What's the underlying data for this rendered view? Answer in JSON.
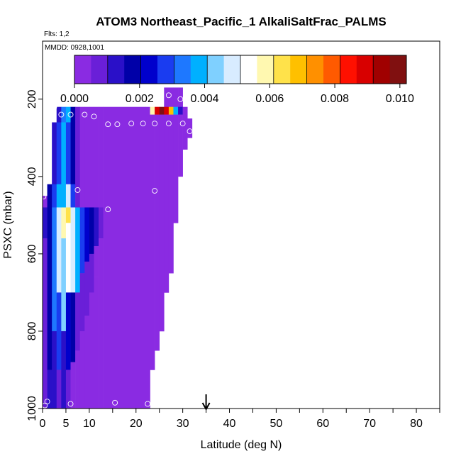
{
  "chart_data": {
    "type": "heatmap",
    "title": "ATOM3 Northeast_Pacific_1 AlkaliSaltFrac_PALMS",
    "flights_label": "Flts: 1,2",
    "date_label": "MMDD: 0928,1001",
    "xlabel": "Latitude (deg N)",
    "ylabel": "PSXC (mbar)",
    "xlim": [
      0,
      85
    ],
    "ylim": [
      1000,
      50
    ],
    "y_reversed": true,
    "x_ticks": [
      0,
      5,
      10,
      20,
      30,
      40,
      50,
      60,
      70,
      80
    ],
    "x_minor_ticks": [
      15,
      25,
      35,
      45,
      55,
      65,
      75,
      85
    ],
    "y_ticks": [
      200,
      400,
      600,
      800,
      1000
    ],
    "colorbar": {
      "min": 0.0,
      "max": 0.0102,
      "ticks": [
        "0.000",
        "0.002",
        "0.004",
        "0.006",
        "0.008",
        "0.010"
      ],
      "tick_values": [
        0,
        0.002,
        0.004,
        0.006,
        0.008,
        0.01
      ],
      "colors": [
        "#8a2be2",
        "#6a1fd8",
        "#2a10c8",
        "#0000a8",
        "#0000cc",
        "#1a3cf0",
        "#1e78ff",
        "#00b0ff",
        "#7fd0ff",
        "#d8ecff",
        "#ffffff",
        "#fff8b0",
        "#ffe24a",
        "#ffc000",
        "#ff9000",
        "#ff5a00",
        "#ff1000",
        "#d80000",
        "#a00000",
        "#801010"
      ]
    },
    "columns": [
      {
        "lat_range": [
          0,
          1
        ],
        "cells": [
          [
            450,
            480,
            0.0001
          ],
          [
            480,
            560,
            0.0015
          ],
          [
            560,
            1000,
            0.001
          ]
        ]
      },
      {
        "lat_range": [
          1,
          2
        ],
        "cells": [
          [
            420,
            480,
            0.0016
          ],
          [
            480,
            900,
            0.0018
          ],
          [
            900,
            1000,
            0.0014
          ]
        ]
      },
      {
        "lat_range": [
          2,
          3
        ],
        "cells": [
          [
            260,
            420,
            0.0014
          ],
          [
            420,
            480,
            0.003
          ],
          [
            480,
            800,
            0.0032
          ],
          [
            800,
            1000,
            0.0015
          ]
        ]
      },
      {
        "lat_range": [
          3,
          4
        ],
        "cells": [
          [
            220,
            260,
            0.0012
          ],
          [
            260,
            420,
            0.0028
          ],
          [
            420,
            480,
            0.004
          ],
          [
            480,
            700,
            0.0046
          ],
          [
            700,
            900,
            0.003
          ],
          [
            900,
            1000,
            0.001
          ]
        ]
      },
      {
        "lat_range": [
          4,
          5
        ],
        "cells": [
          [
            220,
            260,
            0.0032
          ],
          [
            260,
            420,
            0.004
          ],
          [
            420,
            480,
            0.0036
          ],
          [
            480,
            560,
            0.0058
          ],
          [
            560,
            800,
            0.0044
          ],
          [
            800,
            1000,
            0.0012
          ]
        ]
      },
      {
        "lat_range": [
          5,
          6
        ],
        "cells": [
          [
            220,
            260,
            0.004
          ],
          [
            260,
            420,
            0.003
          ],
          [
            420,
            480,
            0.0048
          ],
          [
            480,
            520,
            0.0062
          ],
          [
            520,
            700,
            0.0052
          ],
          [
            700,
            900,
            0.0024
          ],
          [
            900,
            1000,
            0.0008
          ]
        ]
      },
      {
        "lat_range": [
          6,
          7
        ],
        "cells": [
          [
            220,
            260,
            0.0016
          ],
          [
            260,
            420,
            0.002
          ],
          [
            420,
            480,
            0.003
          ],
          [
            480,
            700,
            0.0046
          ],
          [
            700,
            880,
            0.0018
          ],
          [
            880,
            1000,
            0.0004
          ]
        ]
      },
      {
        "lat_range": [
          7,
          8
        ],
        "cells": [
          [
            220,
            480,
            0.001
          ],
          [
            480,
            700,
            0.0038
          ],
          [
            700,
            850,
            0.001
          ],
          [
            850,
            1000,
            0.0003
          ]
        ]
      },
      {
        "lat_range": [
          8,
          9
        ],
        "cells": [
          [
            220,
            480,
            0.0004
          ],
          [
            480,
            650,
            0.003
          ],
          [
            650,
            800,
            0.0008
          ],
          [
            800,
            1000,
            0.0002
          ]
        ]
      },
      {
        "lat_range": [
          9,
          10
        ],
        "cells": [
          [
            220,
            480,
            0.0002
          ],
          [
            480,
            620,
            0.0024
          ],
          [
            620,
            760,
            0.001
          ],
          [
            760,
            1000,
            0.0001
          ]
        ]
      },
      {
        "lat_range": [
          10,
          11
        ],
        "cells": [
          [
            220,
            480,
            0.0001
          ],
          [
            480,
            600,
            0.0018
          ],
          [
            600,
            700,
            0.0008
          ],
          [
            700,
            1000,
            0.0001
          ]
        ]
      },
      {
        "lat_range": [
          11,
          12
        ],
        "cells": [
          [
            220,
            480,
            0.0001
          ],
          [
            480,
            580,
            0.0012
          ],
          [
            580,
            660,
            0.0004
          ],
          [
            660,
            1000,
            0.0001
          ]
        ]
      },
      {
        "lat_range": [
          12,
          13
        ],
        "cells": [
          [
            220,
            480,
            0.0001
          ],
          [
            480,
            560,
            0.0006
          ],
          [
            560,
            1000,
            0.0001
          ]
        ]
      },
      {
        "lat_range": [
          13,
          22
        ],
        "cells": [
          [
            220,
            1000,
            0.0001
          ]
        ]
      },
      {
        "lat_range": [
          22,
          23
        ],
        "cells": [
          [
            220,
            1000,
            0.0002
          ]
        ]
      },
      {
        "lat_range": [
          23,
          24
        ],
        "cells": [
          [
            220,
            240,
            0.006
          ],
          [
            240,
            900,
            0.0002
          ]
        ]
      },
      {
        "lat_range": [
          24,
          25
        ],
        "cells": [
          [
            220,
            240,
            0.0088
          ],
          [
            240,
            850,
            0.0002
          ]
        ]
      },
      {
        "lat_range": [
          25,
          26
        ],
        "cells": [
          [
            220,
            240,
            0.0098
          ],
          [
            240,
            800,
            0.0002
          ]
        ]
      },
      {
        "lat_range": [
          26,
          27
        ],
        "cells": [
          [
            170,
            220,
            0.0001
          ],
          [
            220,
            240,
            0.009
          ],
          [
            240,
            700,
            0.0002
          ]
        ]
      },
      {
        "lat_range": [
          27,
          28
        ],
        "cells": [
          [
            170,
            220,
            0.0001
          ],
          [
            220,
            240,
            0.007
          ],
          [
            240,
            650,
            0.0002
          ]
        ]
      },
      {
        "lat_range": [
          28,
          29
        ],
        "cells": [
          [
            170,
            220,
            0.0001
          ],
          [
            220,
            240,
            0.004
          ],
          [
            240,
            520,
            0.0002
          ]
        ]
      },
      {
        "lat_range": [
          29,
          30
        ],
        "cells": [
          [
            170,
            220,
            0.0001
          ],
          [
            220,
            240,
            0.0014
          ],
          [
            240,
            400,
            0.0002
          ]
        ]
      },
      {
        "lat_range": [
          30,
          31
        ],
        "cells": [
          [
            220,
            330,
            0.0001
          ]
        ]
      },
      {
        "lat_range": [
          31,
          32
        ],
        "cells": [
          [
            250,
            300,
            0.0001
          ]
        ]
      }
    ],
    "sample_points": [
      {
        "lat": 2.5,
        "p": 220
      },
      {
        "lat": 4,
        "p": 240
      },
      {
        "lat": 6,
        "p": 240
      },
      {
        "lat": 9,
        "p": 240
      },
      {
        "lat": 11,
        "p": 245
      },
      {
        "lat": 14,
        "p": 265
      },
      {
        "lat": 16,
        "p": 265
      },
      {
        "lat": 19,
        "p": 263
      },
      {
        "lat": 21.5,
        "p": 263
      },
      {
        "lat": 24,
        "p": 263
      },
      {
        "lat": 27,
        "p": 190
      },
      {
        "lat": 29.5,
        "p": 200
      },
      {
        "lat": 27,
        "p": 263
      },
      {
        "lat": 30,
        "p": 263
      },
      {
        "lat": 31.5,
        "p": 283
      },
      {
        "lat": 7.5,
        "p": 435
      },
      {
        "lat": 24,
        "p": 437
      },
      {
        "lat": 0.2,
        "p": 452
      },
      {
        "lat": 14,
        "p": 485
      },
      {
        "lat": 1,
        "p": 982
      },
      {
        "lat": 0.5,
        "p": 992
      },
      {
        "lat": 6,
        "p": 988
      },
      {
        "lat": 15.5,
        "p": 985
      },
      {
        "lat": 22.5,
        "p": 988
      }
    ],
    "arrow_marker_lat": 35
  }
}
